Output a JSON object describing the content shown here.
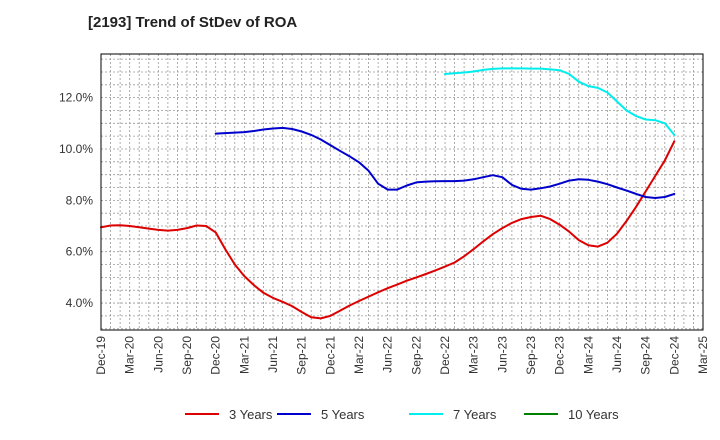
{
  "chart_data": {
    "type": "line",
    "title": "[2193]  Trend of StDev of ROA",
    "xlabel": "",
    "ylabel": "",
    "x_tick_labels": [
      "Dec-19",
      "Mar-20",
      "Jun-20",
      "Sep-20",
      "Dec-20",
      "Mar-21",
      "Jun-21",
      "Sep-21",
      "Dec-21",
      "Mar-22",
      "Jun-22",
      "Sep-22",
      "Dec-22",
      "Mar-23",
      "Jun-23",
      "Sep-23",
      "Dec-23",
      "Mar-24",
      "Jun-24",
      "Sep-24",
      "Dec-24",
      "Mar-25"
    ],
    "y_tick_labels": [
      "4.0%",
      "6.0%",
      "8.0%",
      "10.0%",
      "12.0%"
    ],
    "y_ticks": [
      4,
      6,
      8,
      10,
      12
    ],
    "ylim": [
      2.95,
      13.7
    ],
    "grid": true,
    "legend_position": "bottom",
    "series": [
      {
        "name": "3 Years",
        "color": "#dd0000",
        "x": [
          "Dec-19",
          "Jan-20",
          "Feb-20",
          "Mar-20",
          "Apr-20",
          "May-20",
          "Jun-20",
          "Jul-20",
          "Aug-20",
          "Sep-20",
          "Oct-20",
          "Nov-20",
          "Dec-20",
          "Jan-21",
          "Feb-21",
          "Mar-21",
          "Apr-21",
          "May-21",
          "Jun-21",
          "Jul-21",
          "Aug-21",
          "Sep-21",
          "Oct-21",
          "Nov-21",
          "Dec-21",
          "Jan-22",
          "Feb-22",
          "Mar-22",
          "Apr-22",
          "May-22",
          "Jun-22",
          "Jul-22",
          "Aug-22",
          "Sep-22",
          "Oct-22",
          "Nov-22",
          "Dec-22",
          "Jan-23",
          "Feb-23",
          "Mar-23",
          "Apr-23",
          "May-23",
          "Jun-23",
          "Jul-23",
          "Aug-23",
          "Sep-23",
          "Oct-23",
          "Nov-23",
          "Dec-23",
          "Jan-24",
          "Feb-24",
          "Mar-24",
          "Apr-24",
          "May-24",
          "Jun-24",
          "Jul-24",
          "Aug-24",
          "Sep-24",
          "Oct-24",
          "Nov-24",
          "Dec-24"
        ],
        "values": [
          6.95,
          7.02,
          7.03,
          7.0,
          6.95,
          6.9,
          6.85,
          6.82,
          6.85,
          6.92,
          7.02,
          7.0,
          6.75,
          6.1,
          5.5,
          5.05,
          4.7,
          4.4,
          4.2,
          4.05,
          3.88,
          3.65,
          3.45,
          3.4,
          3.5,
          3.7,
          3.9,
          4.08,
          4.25,
          4.42,
          4.58,
          4.72,
          4.87,
          5.0,
          5.13,
          5.27,
          5.42,
          5.58,
          5.82,
          6.1,
          6.4,
          6.68,
          6.92,
          7.12,
          7.27,
          7.35,
          7.4,
          7.27,
          7.05,
          6.78,
          6.45,
          6.25,
          6.2,
          6.35,
          6.7,
          7.2,
          7.75,
          8.35,
          8.95,
          9.55,
          10.3
        ]
      },
      {
        "name": "5 Years",
        "color": "#0000cc",
        "x": [
          "Dec-20",
          "Jan-21",
          "Feb-21",
          "Mar-21",
          "Apr-21",
          "May-21",
          "Jun-21",
          "Jul-21",
          "Aug-21",
          "Sep-21",
          "Oct-21",
          "Nov-21",
          "Dec-21",
          "Jan-22",
          "Feb-22",
          "Mar-22",
          "Apr-22",
          "May-22",
          "Jun-22",
          "Jul-22",
          "Aug-22",
          "Sep-22",
          "Oct-22",
          "Nov-22",
          "Dec-22",
          "Jan-23",
          "Feb-23",
          "Mar-23",
          "Apr-23",
          "May-23",
          "Jun-23",
          "Jul-23",
          "Aug-23",
          "Sep-23",
          "Oct-23",
          "Nov-23",
          "Dec-23",
          "Jan-24",
          "Feb-24",
          "Mar-24",
          "Apr-24",
          "May-24",
          "Jun-24",
          "Jul-24",
          "Aug-24",
          "Sep-24",
          "Oct-24",
          "Nov-24",
          "Dec-24"
        ],
        "values": [
          10.6,
          10.62,
          10.64,
          10.66,
          10.7,
          10.76,
          10.8,
          10.82,
          10.78,
          10.68,
          10.55,
          10.37,
          10.15,
          9.93,
          9.72,
          9.48,
          9.15,
          8.65,
          8.42,
          8.42,
          8.58,
          8.7,
          8.73,
          8.74,
          8.75,
          8.75,
          8.77,
          8.82,
          8.9,
          8.98,
          8.9,
          8.6,
          8.45,
          8.42,
          8.47,
          8.54,
          8.65,
          8.77,
          8.82,
          8.8,
          8.73,
          8.63,
          8.5,
          8.38,
          8.25,
          8.13,
          8.09,
          8.13,
          8.25
        ]
      },
      {
        "name": "7 Years",
        "color": "#00eeee",
        "x": [
          "Dec-22",
          "Jan-23",
          "Feb-23",
          "Mar-23",
          "Apr-23",
          "May-23",
          "Jun-23",
          "Jul-23",
          "Aug-23",
          "Sep-23",
          "Oct-23",
          "Nov-23",
          "Dec-23",
          "Jan-24",
          "Feb-24",
          "Mar-24",
          "Apr-24",
          "May-24",
          "Jun-24",
          "Jul-24",
          "Aug-24",
          "Sep-24",
          "Oct-24",
          "Nov-24",
          "Dec-24"
        ],
        "values": [
          12.92,
          12.95,
          12.98,
          13.02,
          13.08,
          13.12,
          13.14,
          13.14,
          13.14,
          13.13,
          13.13,
          13.1,
          13.07,
          12.92,
          12.62,
          12.45,
          12.38,
          12.2,
          11.85,
          11.5,
          11.28,
          11.15,
          11.12,
          11.0,
          10.55
        ]
      },
      {
        "name": "10 Years",
        "color": "#008000",
        "x": [],
        "values": []
      }
    ]
  }
}
